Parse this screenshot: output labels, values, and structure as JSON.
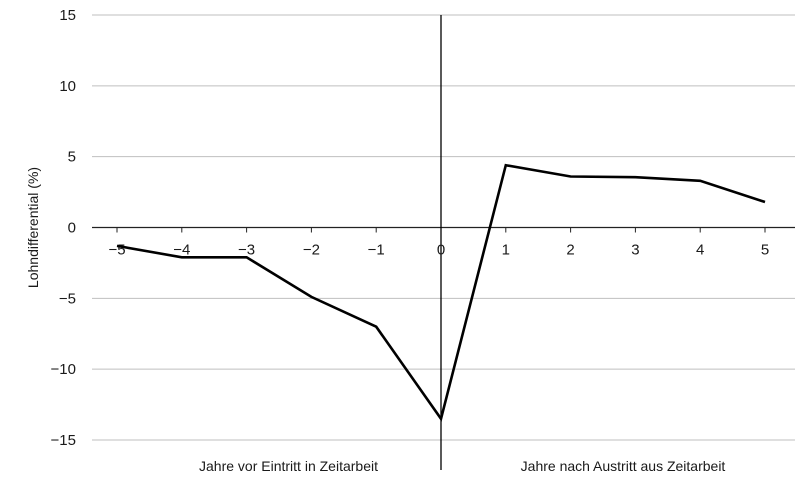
{
  "chart_data": {
    "type": "line",
    "x": [
      -5,
      -4,
      -3,
      -2,
      -1,
      0,
      1,
      2,
      3,
      4,
      5
    ],
    "series": [
      {
        "values": [
          -1.3,
          -2.1,
          -2.1,
          -4.9,
          -7.0,
          -13.5,
          4.4,
          3.6,
          3.55,
          3.3,
          1.8
        ]
      }
    ],
    "ylabel": "Lohndifferential (%)",
    "xlim": [
      -5,
      5
    ],
    "ylim": [
      -15,
      15
    ],
    "yticks": [
      15,
      10,
      5,
      0,
      -5,
      -10,
      -15
    ],
    "ytick_labels": [
      "15",
      "10",
      "5",
      "0",
      "−5",
      "−10",
      "−15"
    ],
    "xticks": [
      -5,
      -4,
      -3,
      -2,
      -1,
      0,
      1,
      2,
      3,
      4,
      5
    ],
    "xtick_labels": [
      "−5",
      "−4",
      "−3",
      "−2",
      "−1",
      "0",
      "1",
      "2",
      "3",
      "4",
      "5"
    ],
    "section_labels": {
      "left": "Jahre vor Eintritt in Zeitarbeit",
      "right": "Jahre nach Austritt aus Zeitarbeit"
    },
    "grid": "horizontal",
    "line_color": "#000000",
    "grid_color": "#bfbfbf"
  }
}
